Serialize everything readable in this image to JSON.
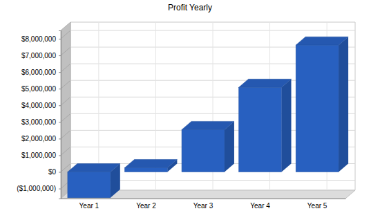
{
  "chart_data": {
    "type": "bar",
    "title": "Profit Yearly",
    "categories": [
      "Year 1",
      "Year 2",
      "Year 3",
      "Year 4",
      "Year 5"
    ],
    "values": [
      -1550000,
      250000,
      2540000,
      5080000,
      7620000
    ],
    "color": "#2860c0",
    "ylim": [
      -1600000,
      8500000
    ],
    "yticks": [
      {
        "value": -1000000,
        "label": "($1,000,000)"
      },
      {
        "value": 0,
        "label": "$0"
      },
      {
        "value": 1000000,
        "label": "$1,000,000"
      },
      {
        "value": 2000000,
        "label": "$2,000,000"
      },
      {
        "value": 3000000,
        "label": "$3,000,000"
      },
      {
        "value": 4000000,
        "label": "$4,000,000"
      },
      {
        "value": 5000000,
        "label": "$5,000,000"
      },
      {
        "value": 6000000,
        "label": "$6,000,000"
      },
      {
        "value": 7000000,
        "label": "$7,000,000"
      },
      {
        "value": 8000000,
        "label": "$8,000,000"
      }
    ],
    "grid": true
  }
}
